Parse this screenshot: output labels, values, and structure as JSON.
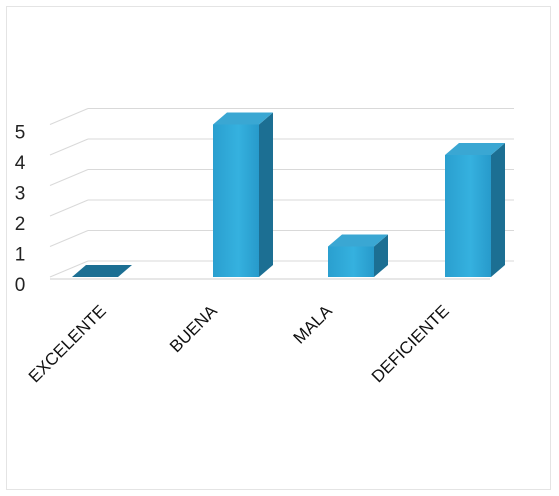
{
  "chart_data": {
    "type": "bar",
    "three_d": true,
    "categories": [
      "EXCELENTE",
      "BUENA",
      "MALA",
      "DEFICIENTE"
    ],
    "values": [
      0,
      5,
      1,
      4
    ],
    "ylim": [
      0,
      5
    ],
    "yticks": [
      "0",
      "1",
      "2",
      "3",
      "4",
      "5"
    ],
    "title": "",
    "xlabel": "",
    "ylabel": "",
    "grid": true,
    "legend": "none",
    "colors": {
      "front": "#2ba6d6",
      "front_light": "#43b9e3",
      "top": "#6cc6e8",
      "side": "#1c6f93",
      "gridline": "#d9d9d9"
    }
  }
}
